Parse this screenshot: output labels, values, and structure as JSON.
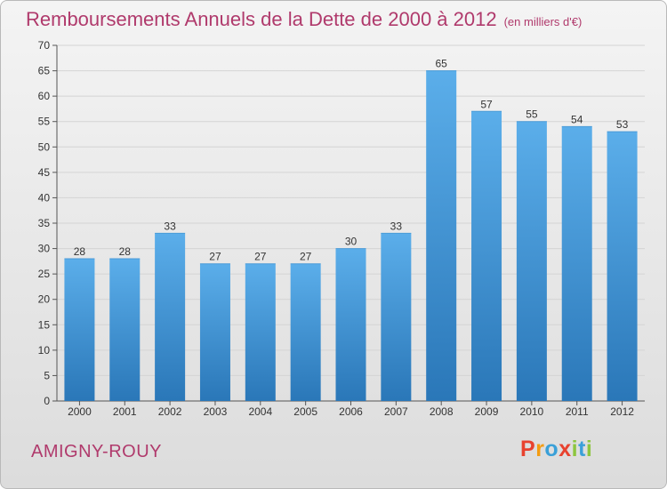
{
  "header": {
    "title": "Remboursements Annuels de la Dette de 2000 à 2012",
    "subtitle": "(en milliers d'€)"
  },
  "footer": {
    "commune": "AMIGNY-ROUY",
    "logo_text": "Proxiti"
  },
  "colors": {
    "title": "#b03a6c",
    "bar_top": "#5baeea",
    "bar_bottom": "#2a77b8",
    "logo_letters": [
      "#e8422f",
      "#f39c12",
      "#3aa0d8",
      "#e8422f",
      "#8dc63f",
      "#3aa0d8",
      "#8dc63f"
    ]
  },
  "chart_data": {
    "type": "bar",
    "categories": [
      "2000",
      "2001",
      "2002",
      "2003",
      "2004",
      "2005",
      "2006",
      "2007",
      "2008",
      "2009",
      "2010",
      "2011",
      "2012"
    ],
    "values": [
      28,
      28,
      33,
      27,
      27,
      27,
      30,
      33,
      65,
      57,
      55,
      54,
      53
    ],
    "title": "Remboursements Annuels de la Dette de 2000 à 2012",
    "xlabel": "",
    "ylabel": "",
    "ylim": [
      0,
      70
    ],
    "yticks": [
      0,
      5,
      10,
      15,
      20,
      25,
      30,
      35,
      40,
      45,
      50,
      55,
      60,
      65,
      70
    ],
    "grid": true,
    "data_labels": true
  }
}
